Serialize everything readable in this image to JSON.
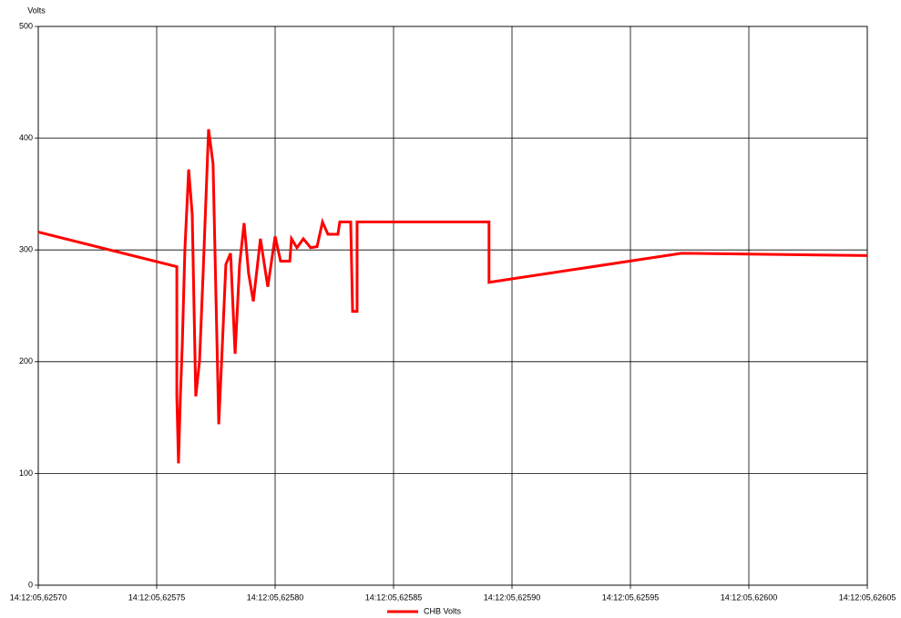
{
  "chart_data": {
    "type": "line",
    "y_label": "Volts",
    "x": [
      5.6257,
      5.6257585,
      5.6257585,
      5.6257592,
      5.62576,
      5.6257608,
      5.6257619,
      5.6257635,
      5.625765,
      5.6257665,
      5.6257681,
      5.6257696,
      5.6257719,
      5.6257738,
      5.6257762,
      5.6257777,
      5.6257792,
      5.6257812,
      5.6257831,
      5.625785,
      5.6257869,
      5.6257888,
      5.6257908,
      5.6257938,
      5.6257969,
      5.6258,
      5.6258023,
      5.6258062,
      5.6258069,
      5.6258092,
      5.6258119,
      5.625815,
      5.6258177,
      5.62582,
      5.6258223,
      5.6258265,
      5.6258273,
      5.6258319,
      5.6258327,
      5.6258346,
      5.6258346,
      5.6258903,
      5.6258903,
      5.6259715,
      5.62605
    ],
    "series": [
      {
        "name": "CHB Volts",
        "color": "#ff0000",
        "values": [
          316,
          285,
          169,
          109,
          169,
          215,
          300,
          372,
          332,
          169,
          201,
          279,
          408,
          377,
          144,
          214,
          287,
          297,
          207,
          287,
          324,
          279,
          254,
          310,
          267,
          312,
          290,
          290,
          310,
          302,
          310,
          302,
          303,
          325,
          314,
          314,
          325,
          325,
          245,
          245,
          325,
          325,
          271,
          297,
          295
        ]
      }
    ],
    "xlim": [
      5.6257,
      5.62605
    ],
    "xticks": [
      {
        "value": 5.6257,
        "label": "14:12:05,62570"
      },
      {
        "value": 5.62575,
        "label": "14:12:05,62575"
      },
      {
        "value": 5.6258,
        "label": "14:12:05,62580"
      },
      {
        "value": 5.62585,
        "label": "14:12:05,62585"
      },
      {
        "value": 5.6259,
        "label": "14:12:05,62590"
      },
      {
        "value": 5.62595,
        "label": "14:12:05,62595"
      },
      {
        "value": 5.626,
        "label": "14:12:05,62600"
      },
      {
        "value": 5.62605,
        "label": "14:12:05,62605"
      }
    ],
    "ylim": [
      0,
      500
    ],
    "yticks": [
      0,
      100,
      200,
      300,
      400,
      500
    ],
    "grid": true
  }
}
